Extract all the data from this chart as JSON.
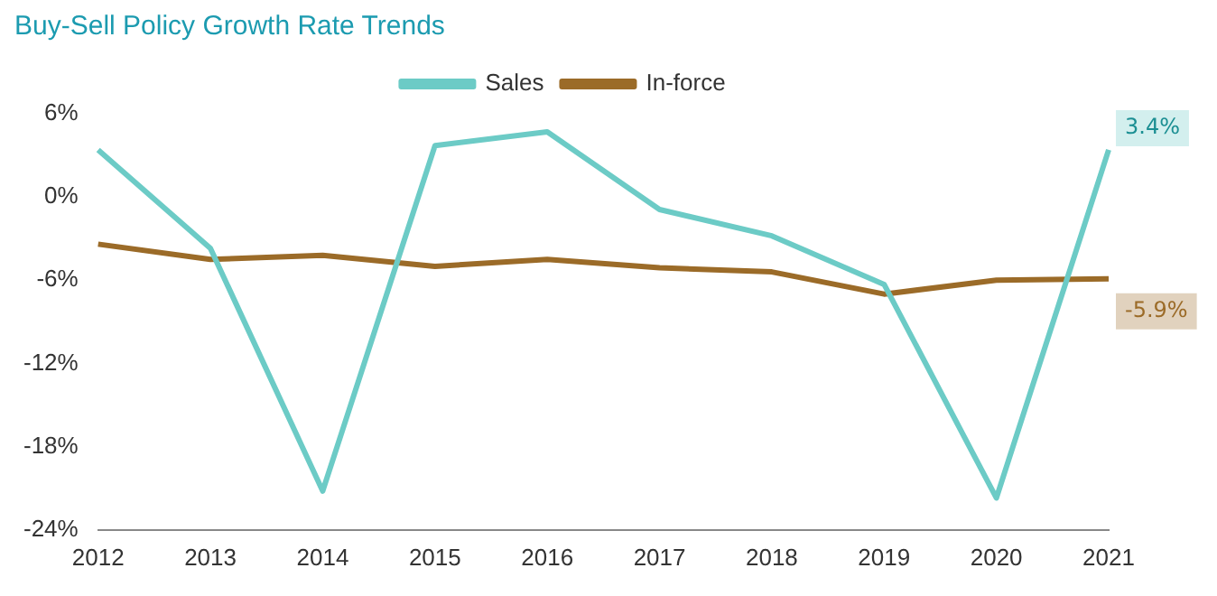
{
  "chart_data": {
    "type": "line",
    "title": "Buy-Sell Policy Growth Rate Trends",
    "categories": [
      "2012",
      "2013",
      "2014",
      "2015",
      "2016",
      "2017",
      "2018",
      "2019",
      "2020",
      "2021"
    ],
    "series": [
      {
        "name": "Sales",
        "color": "#6ccbc6",
        "values": [
          3.4,
          -3.7,
          -21.2,
          3.7,
          4.7,
          -0.9,
          -2.8,
          -6.3,
          -21.7,
          3.4
        ],
        "value_labels": [
          null,
          null,
          null,
          null,
          null,
          null,
          null,
          null,
          null,
          "3.4%"
        ]
      },
      {
        "name": "In-force",
        "color": "#9b6b28",
        "values": [
          -3.4,
          -4.5,
          -4.2,
          -5.0,
          -4.5,
          -5.1,
          -5.4,
          -7.0,
          -6.0,
          -5.9
        ],
        "value_labels": [
          null,
          null,
          null,
          null,
          null,
          null,
          null,
          null,
          null,
          "-5.9%"
        ]
      }
    ],
    "ylim": [
      -24,
      6
    ],
    "yticks": [
      {
        "value": -24,
        "label": "-24%"
      },
      {
        "value": -18,
        "label": "-18%"
      },
      {
        "value": -12,
        "label": "-12%"
      },
      {
        "value": -6,
        "label": "-6%"
      },
      {
        "value": 0,
        "label": "0%"
      },
      {
        "value": 6,
        "label": "6%"
      }
    ],
    "legend": "top",
    "marker": "none",
    "line_style": "solid",
    "grid": false
  }
}
